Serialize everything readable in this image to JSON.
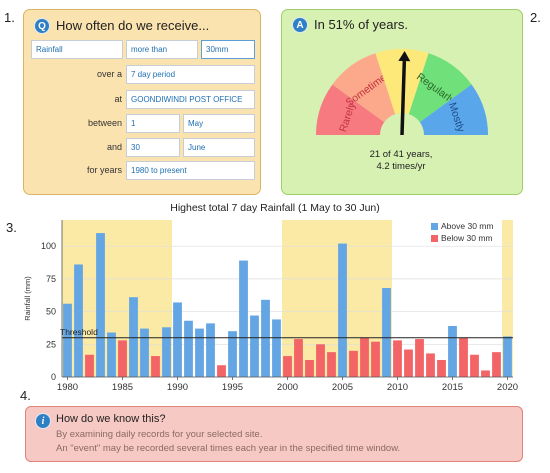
{
  "steps": [
    "1.",
    "2.",
    "3.",
    "4."
  ],
  "question": {
    "badge": "Q",
    "title": "How often do we receive...",
    "variable": "Rainfall",
    "comparison": "more than",
    "amount": "30mm",
    "over_label": "over a",
    "period": "7 day period",
    "at_label": "at",
    "station": "GOONDIWINDI POST OFFICE",
    "between_label": "between",
    "start_day": "1",
    "start_month": "May",
    "and_label": "and",
    "end_day": "30",
    "end_month": "June",
    "years_label": "for years",
    "years": "1980 to present"
  },
  "answer": {
    "badge": "A",
    "title": "In 51% of years.",
    "segments": [
      "Rarely",
      "Sometimes",
      "",
      "Regularly",
      "Mostly"
    ],
    "segment_colors": [
      "#f77a80",
      "#fba98a",
      "#fde97a",
      "#6fe07a",
      "#5aa6ea"
    ],
    "needle_value": 0.51,
    "summary_line1": "21 of 41 years,",
    "summary_line2": "4.2 times/yr"
  },
  "chart_data": {
    "type": "bar",
    "title": "Highest total 7 day Rainfall (1 May to 30 Jun)",
    "ylabel": "Rainfall (mm)",
    "xlabel": "",
    "x": [
      1980,
      1981,
      1982,
      1983,
      1984,
      1985,
      1986,
      1987,
      1988,
      1989,
      1990,
      1991,
      1992,
      1993,
      1994,
      1995,
      1996,
      1997,
      1998,
      1999,
      2000,
      2001,
      2002,
      2003,
      2004,
      2005,
      2006,
      2007,
      2008,
      2009,
      2010,
      2011,
      2012,
      2013,
      2014,
      2015,
      2016,
      2017,
      2018,
      2019,
      2020
    ],
    "values": [
      56,
      86,
      17,
      110,
      34,
      28,
      61,
      37,
      16,
      38,
      57,
      43,
      37,
      41,
      9,
      35,
      89,
      47,
      59,
      44,
      16,
      29,
      13,
      25,
      19,
      102,
      20,
      30,
      27,
      68,
      28,
      21,
      29,
      18,
      13,
      39,
      30,
      17,
      5,
      19,
      31
    ],
    "threshold": 30,
    "threshold_label": "Threshold",
    "legend": [
      "Above 30 mm",
      "Below 30 mm"
    ],
    "legend_position": "top-right",
    "colors": {
      "above": "#64a6e4",
      "below": "#f36467",
      "decade_band": "#fbeaa6"
    },
    "ylim": [
      0,
      120
    ],
    "yticks": [
      0,
      25,
      50,
      75,
      100
    ],
    "xticks": [
      1980,
      1985,
      1990,
      1995,
      2000,
      2005,
      2010,
      2015,
      2020
    ],
    "highlight_decades": [
      [
        1980,
        1989
      ],
      [
        2000,
        2009
      ],
      [
        2020,
        2020
      ]
    ],
    "grid": "horizontal"
  },
  "info": {
    "badge": "i",
    "title": "How do we know this?",
    "line1": "By examining daily records for your selected site.",
    "line2": "An \"event\" may be recorded several times each year in the specified time window."
  }
}
